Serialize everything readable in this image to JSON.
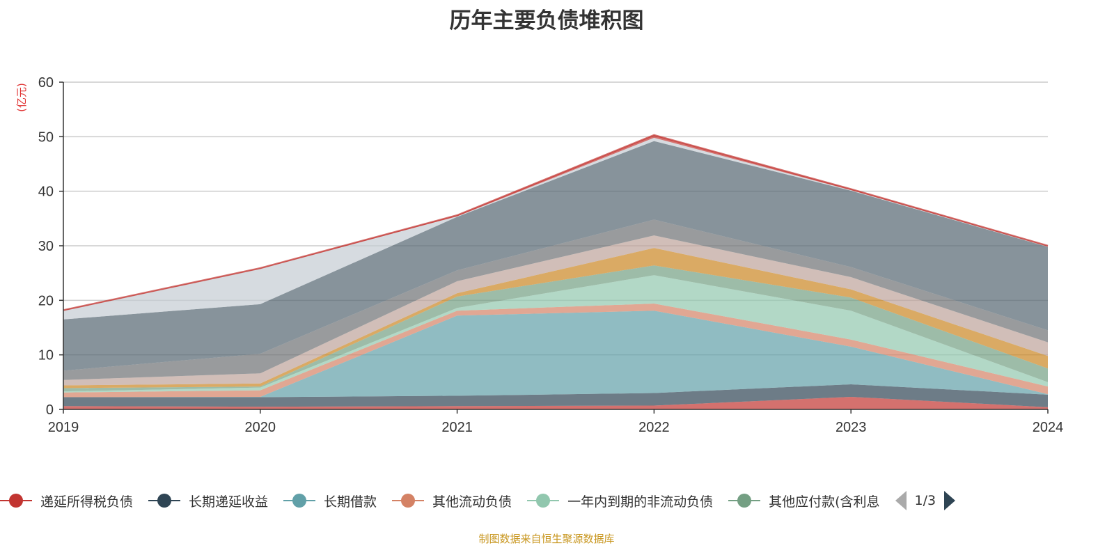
{
  "chart_data": {
    "type": "area",
    "stacked": true,
    "title": "历年主要负债堆积图",
    "ylabel": "(亿元)",
    "xlabel": "",
    "ylim": [
      0,
      60
    ],
    "yticks": [
      "0",
      "10",
      "20",
      "30",
      "40",
      "50",
      "60"
    ],
    "categories": [
      "2019",
      "2020",
      "2021",
      "2022",
      "2023",
      "2024"
    ],
    "grid": true,
    "legend_position": "bottom",
    "series": [
      {
        "name": "递延所得税负债",
        "color": "#c23531",
        "values": [
          0.6,
          0.5,
          0.6,
          0.7,
          2.3,
          0.4
        ]
      },
      {
        "name": "长期递延收益",
        "color": "#2f4554",
        "values": [
          1.65,
          1.75,
          1.9,
          2.3,
          2.3,
          2.3
        ]
      },
      {
        "name": "长期借款",
        "color": "#61a0a8",
        "values": [
          0,
          0.05,
          14.7,
          15.1,
          6.9,
          0.1
        ]
      },
      {
        "name": "其他流动负债",
        "color": "#d48265",
        "values": [
          0.85,
          1.2,
          0.9,
          1.3,
          1.3,
          1.4
        ]
      },
      {
        "name": "一年内到期的非流动负债",
        "color": "#91c7ae",
        "values": [
          0.2,
          0.5,
          0.5,
          5.2,
          5.3,
          0.8
        ]
      },
      {
        "name": "其他应付款(含利息",
        "color": "#749f83",
        "values": [
          0.6,
          0.2,
          2.1,
          1.8,
          2.4,
          2.5
        ]
      },
      {
        "color": "#ca8622",
        "values": [
          0.5,
          0.55,
          0.6,
          3.2,
          1.5,
          2.3
        ]
      },
      {
        "color": "#bda29a",
        "values": [
          1.0,
          1.85,
          2.2,
          2.3,
          2.25,
          2.5
        ]
      },
      {
        "color": "#6e7074",
        "values": [
          1.7,
          3.6,
          2.0,
          2.9,
          1.85,
          2.2
        ]
      },
      {
        "color": "#546570",
        "values": [
          9.4,
          9.1,
          9.8,
          14.4,
          14.0,
          15.3
        ]
      },
      {
        "color": "#c4ccd3",
        "values": [
          1.6,
          6.5,
          0.1,
          0.6,
          0.1,
          0.1
        ]
      },
      {
        "color": "#c23531",
        "values": [
          0.1,
          0.1,
          0.2,
          0.5,
          0.2,
          0.1
        ]
      }
    ]
  },
  "legend": {
    "visible_count": 6,
    "page_label": "1/3"
  },
  "footer": "制图数据来自恒生聚源数据库"
}
